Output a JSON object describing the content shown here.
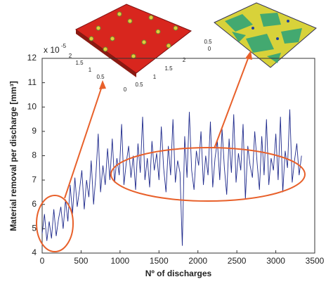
{
  "chart_data": {
    "type": "line",
    "xlabel": "Nº of discharges",
    "ylabel": "Material removal per discharge [mm³]",
    "y_multiplier": "x 10",
    "y_multiplier_exp": "-5",
    "color": "#1f2a8c",
    "xlim": [
      0,
      3500
    ],
    "xticks": [
      0,
      500,
      1000,
      1500,
      2000,
      2500,
      3000,
      3500
    ],
    "ylim": [
      4,
      12
    ],
    "yticks": [
      4,
      5,
      6,
      7,
      8,
      9,
      10,
      11,
      12
    ],
    "x": [
      0,
      30,
      60,
      90,
      120,
      150,
      180,
      210,
      240,
      270,
      300,
      330,
      360,
      390,
      420,
      450,
      480,
      510,
      540,
      570,
      600,
      630,
      660,
      690,
      720,
      750,
      780,
      810,
      840,
      870,
      900,
      930,
      960,
      990,
      1020,
      1050,
      1080,
      1110,
      1140,
      1170,
      1200,
      1230,
      1260,
      1290,
      1320,
      1350,
      1380,
      1410,
      1440,
      1470,
      1500,
      1530,
      1560,
      1590,
      1620,
      1650,
      1680,
      1710,
      1740,
      1770,
      1800,
      1830,
      1860,
      1890,
      1920,
      1950,
      1980,
      2010,
      2040,
      2070,
      2100,
      2130,
      2160,
      2190,
      2220,
      2250,
      2280,
      2310,
      2340,
      2370,
      2400,
      2430,
      2460,
      2490,
      2520,
      2550,
      2580,
      2610,
      2640,
      2670,
      2700,
      2730,
      2760,
      2790,
      2820,
      2850,
      2880,
      2910,
      2940,
      2970,
      3000,
      3030,
      3060,
      3090,
      3120,
      3150,
      3180,
      3210,
      3240,
      3270,
      3300,
      3330
    ],
    "values": [
      4.8,
      5.6,
      4.5,
      5.3,
      4.6,
      5.8,
      4.7,
      5.4,
      5.9,
      5.0,
      6.2,
      5.3,
      6.8,
      5.6,
      7.1,
      5.9,
      6.6,
      7.4,
      5.8,
      7.0,
      6.3,
      7.8,
      6.0,
      7.2,
      8.9,
      6.5,
      7.6,
      6.8,
      8.3,
      7.0,
      8.7,
      6.9,
      7.9,
      7.2,
      9.3,
      6.8,
      7.7,
      8.4,
      7.1,
      8.0,
      6.6,
      8.5,
      7.3,
      9.6,
      7.0,
      7.9,
      6.7,
      8.6,
      7.4,
      8.1,
      7.0,
      9.2,
      7.5,
      6.5,
      8.4,
      7.2,
      9.5,
      6.9,
      7.8,
      7.3,
      4.3,
      8.8,
      7.1,
      9.8,
      7.4,
      6.6,
      8.2,
      7.6,
      9.0,
      6.8,
      8.0,
      7.2,
      9.4,
      6.7,
      7.9,
      8.6,
      7.0,
      9.1,
      7.5,
      6.4,
      8.7,
      7.3,
      9.7,
      6.9,
      8.1,
      7.4,
      9.3,
      6.2,
      8.4,
      7.6,
      7.1,
      9.0,
      7.7,
      6.6,
      8.8,
      7.2,
      9.5,
      6.8,
      7.9,
      7.4,
      8.9,
      7.0,
      9.6,
      6.5,
      8.2,
      7.5,
      9.9,
      6.9,
      7.8,
      8.5,
      7.2,
      8.0
    ],
    "inset_red_labels": [
      "2",
      "1.5",
      "1",
      "0.5",
      "0",
      "0.5",
      "1",
      "1.5",
      "2"
    ],
    "inset_green_labels": [
      "0.5",
      "0"
    ]
  }
}
